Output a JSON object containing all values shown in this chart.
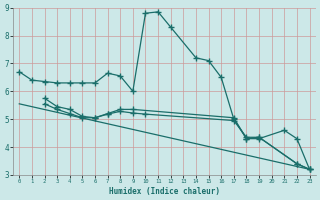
{
  "xlabel": "Humidex (Indice chaleur)",
  "background_color": "#cce8e8",
  "grid_color": "#aacccc",
  "line_color": "#1a6e6a",
  "xlim": [
    -0.5,
    23.5
  ],
  "ylim": [
    3,
    9
  ],
  "xticks": [
    0,
    1,
    2,
    3,
    4,
    5,
    6,
    7,
    8,
    9,
    10,
    11,
    12,
    13,
    14,
    15,
    16,
    17,
    18,
    19,
    20,
    21,
    22,
    23
  ],
  "yticks": [
    3,
    4,
    5,
    6,
    7,
    8,
    9
  ],
  "line1_x": [
    0,
    1,
    2,
    3,
    4,
    5,
    6,
    7,
    8,
    9,
    10,
    11,
    12,
    14,
    15,
    16,
    17,
    18,
    19,
    21,
    22,
    23
  ],
  "line1_y": [
    6.7,
    6.4,
    6.35,
    6.3,
    6.3,
    6.3,
    6.3,
    6.65,
    6.55,
    6.0,
    8.8,
    8.85,
    8.3,
    7.2,
    7.1,
    6.5,
    5.0,
    4.3,
    4.3,
    4.6,
    4.3,
    3.2
  ],
  "line2_x": [
    2,
    3,
    4,
    5,
    6,
    7,
    8,
    9,
    17,
    18,
    19,
    22,
    23
  ],
  "line2_y": [
    5.75,
    5.45,
    5.35,
    5.1,
    5.05,
    5.2,
    5.35,
    5.35,
    5.05,
    4.3,
    4.35,
    3.4,
    3.2
  ],
  "line3_x": [
    0,
    23
  ],
  "line3_y": [
    5.55,
    3.2
  ],
  "line4_x": [
    2,
    3,
    4,
    5,
    6,
    7,
    8,
    9,
    10,
    17,
    18,
    19,
    22,
    23
  ],
  "line4_y": [
    5.55,
    5.35,
    5.2,
    5.05,
    5.05,
    5.18,
    5.28,
    5.22,
    5.18,
    4.95,
    4.35,
    4.35,
    3.4,
    3.2
  ]
}
